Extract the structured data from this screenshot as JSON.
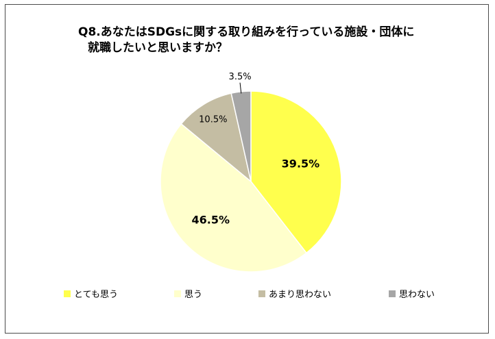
{
  "chart_data": {
    "type": "pie",
    "title_line1": "Q8.あなたはSDGsに関する取り組みを行っている施設・団体に",
    "title_line2": "就職したいと思いますか？",
    "labels": [
      "とても思う",
      "思う",
      "あまり思わない",
      "思わない"
    ],
    "values": [
      39.5,
      46.5,
      10.5,
      3.5
    ],
    "value_labels": [
      "39.5%",
      "46.5%",
      "10.5%",
      "3.5%"
    ],
    "colors": [
      "#FFFF4D",
      "#FFFFCC",
      "#C4BDA3",
      "#A6A6A6"
    ],
    "start_angle_deg": 0,
    "direction": "clockwise",
    "legend_position": "bottom"
  }
}
